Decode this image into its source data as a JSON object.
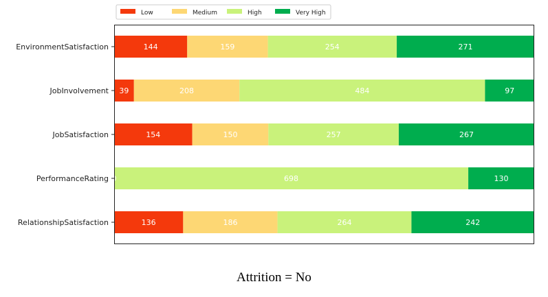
{
  "caption": "Attrition = No",
  "chart_data": {
    "type": "bar",
    "orientation": "horizontal",
    "stacked": true,
    "normalized": true,
    "title": "",
    "xlabel": "",
    "ylabel": "",
    "grid": false,
    "legend_position": "top-left",
    "categories": [
      "EnvironmentSatisfaction",
      "JobInvolvement",
      "JobSatisfaction",
      "PerformanceRating",
      "RelationshipSatisfaction"
    ],
    "series": [
      {
        "name": "Low",
        "color": "#f4390c",
        "values": [
          144,
          39,
          154,
          0,
          136
        ],
        "labels": [
          "144",
          "39",
          "154",
          "",
          "136"
        ]
      },
      {
        "name": "Medium",
        "color": "#fdd774",
        "values": [
          159,
          208,
          150,
          0,
          186
        ],
        "labels": [
          "159",
          "208",
          "150",
          "",
          "186"
        ]
      },
      {
        "name": "High",
        "color": "#c9f27b",
        "values": [
          254,
          484,
          257,
          698,
          264
        ],
        "labels": [
          "254",
          "484",
          "257",
          "698",
          "264"
        ]
      },
      {
        "name": "Very High",
        "color": "#00ad4e",
        "values": [
          271,
          97,
          267,
          130,
          242
        ],
        "labels": [
          "271",
          "97",
          "267",
          "130",
          "242"
        ]
      }
    ],
    "zero_labels": [
      "",
      "",
      "",
      "0",
      ""
    ]
  }
}
